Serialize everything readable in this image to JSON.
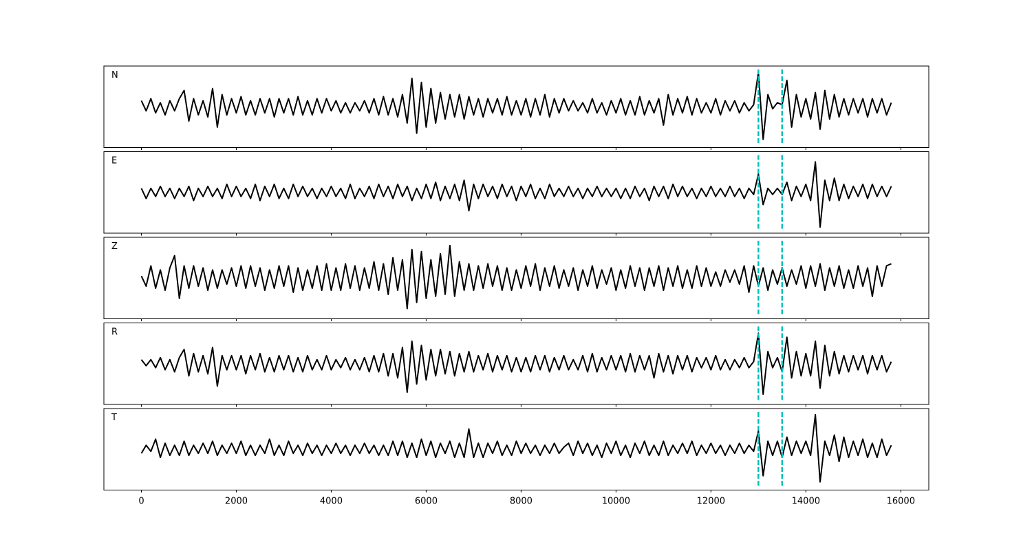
{
  "chart_data": {
    "type": "line",
    "x": [
      0,
      100,
      200,
      300,
      400,
      500,
      600,
      700,
      800,
      900,
      1000,
      1100,
      1200,
      1300,
      1400,
      1500,
      1600,
      1700,
      1800,
      1900,
      2000,
      2100,
      2200,
      2300,
      2400,
      2500,
      2600,
      2700,
      2800,
      2900,
      3000,
      3100,
      3200,
      3300,
      3400,
      3500,
      3600,
      3700,
      3800,
      3900,
      4000,
      4100,
      4200,
      4300,
      4400,
      4500,
      4600,
      4700,
      4800,
      4900,
      5000,
      5100,
      5200,
      5300,
      5400,
      5500,
      5600,
      5700,
      5800,
      5900,
      6000,
      6100,
      6200,
      6300,
      6400,
      6500,
      6600,
      6700,
      6800,
      6900,
      7000,
      7100,
      7200,
      7300,
      7400,
      7500,
      7600,
      7700,
      7800,
      7900,
      8000,
      8100,
      8200,
      8300,
      8400,
      8500,
      8600,
      8700,
      8800,
      8900,
      9000,
      9100,
      9200,
      9300,
      9400,
      9500,
      9600,
      9700,
      9800,
      9900,
      10000,
      10100,
      10200,
      10300,
      10400,
      10500,
      10600,
      10700,
      10800,
      10900,
      11000,
      11100,
      11200,
      11300,
      11400,
      11500,
      11600,
      11700,
      11800,
      11900,
      12000,
      12100,
      12200,
      12300,
      12400,
      12500,
      12600,
      12700,
      12800,
      12900,
      13000,
      13100,
      13200,
      13300,
      13400,
      13500,
      13600,
      13700,
      13800,
      13900,
      14000,
      14100,
      14200,
      14300,
      14400,
      14500,
      14600,
      14700,
      14800,
      14900,
      15000,
      15100,
      15200,
      15300,
      15400,
      15500,
      15600,
      15700,
      15800
    ],
    "series": [
      {
        "name": "N",
        "color": "#000000",
        "values": [
          0.15,
          -0.1,
          0.2,
          -0.15,
          0.1,
          -0.2,
          0.15,
          -0.1,
          0.2,
          0.4,
          -0.35,
          0.2,
          -0.2,
          0.15,
          -0.25,
          0.45,
          -0.5,
          0.3,
          -0.2,
          0.2,
          -0.15,
          0.25,
          -0.2,
          0.15,
          -0.2,
          0.2,
          -0.15,
          0.2,
          -0.25,
          0.2,
          -0.15,
          0.2,
          -0.2,
          0.25,
          -0.2,
          0.15,
          -0.2,
          0.2,
          -0.15,
          0.2,
          -0.1,
          0.15,
          -0.15,
          0.1,
          -0.15,
          0.1,
          -0.1,
          0.15,
          -0.15,
          0.2,
          -0.2,
          0.25,
          -0.2,
          0.2,
          -0.25,
          0.3,
          -0.4,
          0.7,
          -0.65,
          0.6,
          -0.5,
          0.45,
          -0.4,
          0.35,
          -0.3,
          0.3,
          -0.25,
          0.3,
          -0.3,
          0.25,
          -0.2,
          0.2,
          -0.25,
          0.2,
          -0.15,
          0.2,
          -0.2,
          0.25,
          -0.2,
          0.15,
          -0.2,
          0.2,
          -0.25,
          0.2,
          -0.2,
          0.3,
          -0.25,
          0.2,
          -0.15,
          0.2,
          -0.1,
          0.15,
          -0.1,
          0.1,
          -0.15,
          0.2,
          -0.15,
          0.1,
          -0.2,
          0.15,
          -0.15,
          0.2,
          -0.2,
          0.15,
          -0.2,
          0.25,
          -0.2,
          0.15,
          -0.15,
          0.2,
          -0.45,
          0.3,
          -0.2,
          0.2,
          -0.15,
          0.25,
          -0.2,
          0.2,
          -0.15,
          0.1,
          -0.15,
          0.2,
          -0.2,
          0.15,
          -0.1,
          0.15,
          -0.15,
          0.1,
          -0.1,
          0.05,
          0.85,
          -0.8,
          0.3,
          -0.05,
          0.1,
          0.05,
          0.65,
          -0.5,
          0.3,
          -0.25,
          0.2,
          -0.3,
          0.35,
          -0.55,
          0.4,
          -0.3,
          0.3,
          -0.25,
          0.2,
          -0.2,
          0.2,
          -0.15,
          0.2,
          -0.25,
          0.2,
          -0.15,
          0.2,
          -0.2,
          0.1
        ]
      },
      {
        "name": "E",
        "color": "#000000",
        "values": [
          0.1,
          -0.15,
          0.1,
          -0.1,
          0.15,
          -0.1,
          0.1,
          -0.15,
          0.1,
          -0.1,
          0.15,
          -0.2,
          0.1,
          -0.1,
          0.15,
          -0.1,
          0.1,
          -0.15,
          0.2,
          -0.1,
          0.15,
          -0.1,
          0.1,
          -0.15,
          0.2,
          -0.2,
          0.15,
          -0.1,
          0.2,
          -0.15,
          0.1,
          -0.15,
          0.2,
          -0.1,
          0.15,
          -0.1,
          0.1,
          -0.15,
          0.1,
          -0.1,
          0.15,
          -0.1,
          0.1,
          -0.15,
          0.2,
          -0.15,
          0.1,
          -0.1,
          0.15,
          -0.15,
          0.2,
          -0.1,
          0.15,
          -0.15,
          0.2,
          -0.1,
          0.15,
          -0.2,
          0.1,
          -0.15,
          0.2,
          -0.15,
          0.25,
          -0.2,
          0.15,
          -0.15,
          0.2,
          -0.2,
          0.3,
          -0.45,
          0.2,
          -0.15,
          0.2,
          -0.1,
          0.15,
          -0.15,
          0.2,
          -0.1,
          0.15,
          -0.2,
          0.15,
          -0.1,
          0.2,
          -0.15,
          0.1,
          -0.15,
          0.2,
          -0.1,
          0.1,
          -0.1,
          0.15,
          -0.1,
          0.1,
          -0.15,
          0.1,
          -0.1,
          0.15,
          -0.1,
          0.1,
          -0.1,
          0.1,
          -0.15,
          0.1,
          -0.15,
          0.15,
          -0.1,
          0.1,
          -0.2,
          0.15,
          -0.1,
          0.15,
          -0.15,
          0.2,
          -0.1,
          0.15,
          -0.1,
          0.1,
          -0.15,
          0.1,
          -0.1,
          0.15,
          -0.1,
          0.1,
          -0.1,
          0.15,
          -0.1,
          0.1,
          -0.15,
          0.1,
          -0.05,
          0.45,
          -0.3,
          0.1,
          -0.05,
          0.1,
          -0.05,
          0.25,
          -0.2,
          0.15,
          -0.1,
          0.2,
          -0.2,
          0.75,
          -0.85,
          0.3,
          -0.2,
          0.35,
          -0.2,
          0.2,
          -0.15,
          0.15,
          -0.1,
          0.2,
          -0.15,
          0.2,
          -0.1,
          0.15,
          -0.1,
          0.15
        ]
      },
      {
        "name": "Z",
        "color": "#000000",
        "values": [
          0.05,
          -0.2,
          0.3,
          -0.25,
          0.2,
          -0.3,
          0.25,
          0.55,
          -0.5,
          0.3,
          -0.25,
          0.3,
          -0.2,
          0.25,
          -0.3,
          0.2,
          -0.25,
          0.2,
          -0.15,
          0.25,
          -0.2,
          0.3,
          -0.25,
          0.3,
          -0.2,
          0.25,
          -0.3,
          0.2,
          -0.25,
          0.3,
          -0.2,
          0.3,
          -0.35,
          0.25,
          -0.3,
          0.2,
          -0.25,
          0.3,
          -0.3,
          0.35,
          -0.3,
          0.25,
          -0.3,
          0.35,
          -0.25,
          0.3,
          -0.3,
          0.25,
          -0.25,
          0.4,
          -0.3,
          0.35,
          -0.4,
          0.5,
          -0.3,
          0.45,
          -0.75,
          0.7,
          -0.6,
          0.65,
          -0.5,
          0.45,
          -0.45,
          0.6,
          -0.4,
          0.8,
          -0.45,
          0.4,
          -0.3,
          0.35,
          -0.3,
          0.3,
          -0.25,
          0.35,
          -0.2,
          0.3,
          -0.3,
          0.25,
          -0.3,
          0.2,
          -0.25,
          0.3,
          -0.2,
          0.35,
          -0.3,
          0.25,
          -0.2,
          0.3,
          -0.25,
          0.2,
          -0.2,
          0.25,
          -0.3,
          0.2,
          -0.2,
          0.3,
          -0.25,
          0.2,
          -0.15,
          0.25,
          -0.3,
          0.2,
          -0.25,
          0.3,
          -0.2,
          0.25,
          -0.3,
          0.25,
          -0.2,
          0.3,
          -0.3,
          0.25,
          -0.2,
          0.3,
          -0.25,
          0.2,
          -0.25,
          0.3,
          -0.2,
          0.25,
          -0.2,
          0.15,
          -0.2,
          0.2,
          -0.1,
          0.2,
          -0.15,
          0.3,
          -0.35,
          0.3,
          -0.2,
          0.25,
          -0.3,
          0.2,
          -0.15,
          0.25,
          -0.2,
          0.2,
          -0.15,
          0.3,
          -0.25,
          0.3,
          -0.2,
          0.35,
          -0.3,
          0.25,
          -0.2,
          0.3,
          -0.25,
          0.2,
          -0.25,
          0.3,
          -0.2,
          0.25,
          -0.45,
          0.3,
          -0.2,
          0.3,
          0.35
        ]
      },
      {
        "name": "R",
        "color": "#000000",
        "values": [
          0.1,
          -0.05,
          0.1,
          -0.1,
          0.15,
          -0.15,
          0.1,
          -0.2,
          0.15,
          0.35,
          -0.3,
          0.25,
          -0.2,
          0.2,
          -0.25,
          0.4,
          -0.55,
          0.2,
          -0.15,
          0.2,
          -0.15,
          0.2,
          -0.25,
          0.2,
          -0.15,
          0.25,
          -0.2,
          0.15,
          -0.2,
          0.2,
          -0.15,
          0.2,
          -0.2,
          0.15,
          -0.2,
          0.2,
          -0.15,
          0.1,
          -0.15,
          0.2,
          -0.15,
          0.1,
          -0.1,
          0.15,
          -0.15,
          0.1,
          -0.15,
          0.15,
          -0.2,
          0.2,
          -0.2,
          0.25,
          -0.3,
          0.25,
          -0.35,
          0.4,
          -0.7,
          0.55,
          -0.5,
          0.45,
          -0.4,
          0.35,
          -0.3,
          0.35,
          -0.25,
          0.3,
          -0.3,
          0.25,
          -0.2,
          0.3,
          -0.2,
          0.2,
          -0.15,
          0.25,
          -0.2,
          0.2,
          -0.15,
          0.2,
          -0.2,
          0.15,
          -0.2,
          0.15,
          -0.2,
          0.2,
          -0.15,
          0.2,
          -0.2,
          0.15,
          -0.15,
          0.2,
          -0.15,
          0.1,
          -0.15,
          0.2,
          -0.2,
          0.25,
          -0.2,
          0.15,
          -0.15,
          0.2,
          -0.15,
          0.2,
          -0.2,
          0.25,
          -0.2,
          0.2,
          -0.15,
          0.2,
          -0.35,
          0.25,
          -0.2,
          0.2,
          -0.25,
          0.2,
          -0.15,
          0.2,
          -0.2,
          0.15,
          -0.1,
          0.15,
          -0.15,
          0.2,
          -0.15,
          0.1,
          -0.15,
          0.1,
          -0.1,
          0.15,
          -0.1,
          0.05,
          0.75,
          -0.75,
          0.3,
          -0.1,
          0.15,
          -0.2,
          0.65,
          -0.35,
          0.3,
          -0.3,
          0.25,
          -0.3,
          0.55,
          -0.6,
          0.45,
          -0.3,
          0.3,
          -0.25,
          0.2,
          -0.2,
          0.2,
          -0.15,
          0.2,
          -0.25,
          0.2,
          -0.15,
          0.2,
          -0.2,
          0.05
        ]
      },
      {
        "name": "T",
        "color": "#000000",
        "values": [
          -0.1,
          0.1,
          -0.05,
          0.25,
          -0.2,
          0.15,
          -0.15,
          0.1,
          -0.15,
          0.2,
          -0.15,
          0.1,
          -0.1,
          0.15,
          -0.1,
          0.2,
          -0.15,
          0.1,
          -0.1,
          0.15,
          -0.1,
          0.2,
          -0.15,
          0.1,
          -0.15,
          0.1,
          -0.1,
          0.25,
          -0.15,
          0.1,
          -0.15,
          0.2,
          -0.1,
          0.1,
          -0.15,
          0.15,
          -0.1,
          0.1,
          -0.15,
          0.1,
          -0.1,
          0.15,
          -0.1,
          0.1,
          -0.15,
          0.1,
          -0.1,
          0.15,
          -0.1,
          0.1,
          -0.15,
          0.1,
          -0.15,
          0.2,
          -0.15,
          0.2,
          -0.2,
          0.15,
          -0.2,
          0.25,
          -0.15,
          0.2,
          -0.2,
          0.15,
          -0.1,
          0.2,
          -0.2,
          0.15,
          -0.2,
          0.5,
          -0.2,
          0.15,
          -0.2,
          0.15,
          -0.1,
          0.2,
          -0.15,
          0.1,
          -0.15,
          0.2,
          -0.1,
          0.15,
          -0.1,
          0.1,
          -0.15,
          0.1,
          -0.1,
          0.15,
          -0.1,
          0.05,
          0.15,
          -0.15,
          0.2,
          -0.1,
          0.15,
          -0.15,
          0.1,
          -0.2,
          0.15,
          -0.1,
          0.2,
          -0.15,
          0.1,
          -0.2,
          0.15,
          -0.1,
          0.2,
          -0.15,
          0.1,
          -0.15,
          0.2,
          -0.15,
          0.1,
          -0.1,
          0.15,
          -0.1,
          0.2,
          -0.15,
          0.1,
          -0.1,
          0.15,
          -0.1,
          0.1,
          -0.15,
          0.1,
          -0.1,
          0.15,
          -0.1,
          0.1,
          -0.05,
          0.45,
          -0.65,
          0.2,
          -0.15,
          0.2,
          -0.2,
          0.3,
          -0.15,
          0.2,
          -0.1,
          0.2,
          -0.15,
          0.85,
          -0.8,
          0.2,
          -0.15,
          0.35,
          -0.3,
          0.3,
          -0.2,
          0.2,
          -0.15,
          0.25,
          -0.2,
          0.15,
          -0.2,
          0.25,
          -0.15,
          0.1
        ]
      }
    ],
    "xlim": [
      -790,
      16590
    ],
    "xticks": [
      0,
      2000,
      4000,
      6000,
      8000,
      10000,
      12000,
      14000,
      16000
    ],
    "ylim": [
      -1,
      1
    ],
    "vlines": [
      13000,
      13500
    ],
    "vline_color": "#00bfbf"
  }
}
